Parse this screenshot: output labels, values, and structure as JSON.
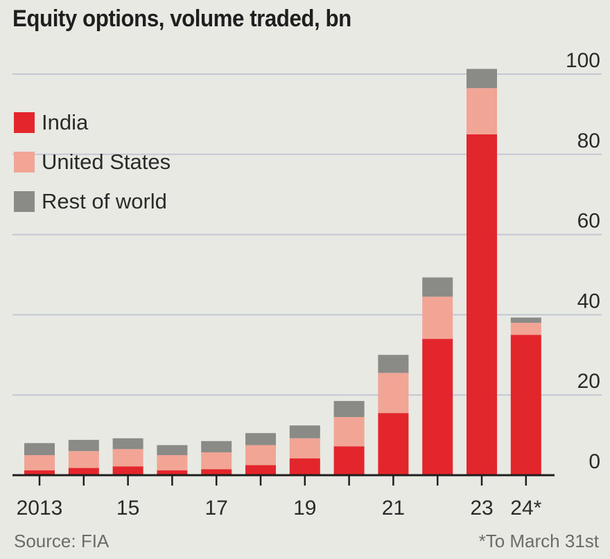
{
  "title": "Equity options, volume traded, bn",
  "source": "Source: FIA",
  "footnote": "*To March 31st",
  "colors": {
    "india": "#e3262c",
    "united_states": "#f2a595",
    "rest_of_world": "#8a8a86",
    "grid": "#c4c7d3",
    "axis": "#1e1e1e",
    "background": "#e9e9e3"
  },
  "legend": [
    {
      "key": "india",
      "label": "India"
    },
    {
      "key": "united_states",
      "label": "United States"
    },
    {
      "key": "rest_of_world",
      "label": "Rest of world"
    }
  ],
  "chart_data": {
    "type": "bar",
    "stacked": true,
    "title": "Equity options, volume traded, bn",
    "xlabel": "",
    "ylabel": "",
    "ylim": [
      0,
      100
    ],
    "yticks": [
      0,
      20,
      40,
      60,
      80,
      100
    ],
    "y_axis_position": "right",
    "grid": true,
    "legend_position": "top-left",
    "categories": [
      "2013",
      "2014",
      "2015",
      "2016",
      "2017",
      "2018",
      "2019",
      "2020",
      "2021",
      "2022",
      "2023",
      "2024*"
    ],
    "xtick_labels": [
      "2013",
      "",
      "15",
      "",
      "17",
      "",
      "19",
      "",
      "21",
      "",
      "23",
      "24*"
    ],
    "series": [
      {
        "name": "India",
        "key": "india",
        "values": [
          1.2,
          1.8,
          2.2,
          1.2,
          1.5,
          2.5,
          4.2,
          7.2,
          15.5,
          34.0,
          85.0,
          35.0
        ]
      },
      {
        "name": "United States",
        "key": "united_states",
        "values": [
          3.8,
          4.2,
          4.3,
          3.8,
          4.2,
          5.0,
          5.0,
          7.3,
          10.0,
          10.5,
          11.5,
          3.0
        ]
      },
      {
        "name": "Rest of world",
        "key": "rest_of_world",
        "values": [
          3.0,
          2.8,
          2.7,
          2.5,
          2.8,
          3.0,
          3.2,
          4.0,
          4.5,
          4.8,
          4.8,
          1.3
        ]
      }
    ]
  }
}
